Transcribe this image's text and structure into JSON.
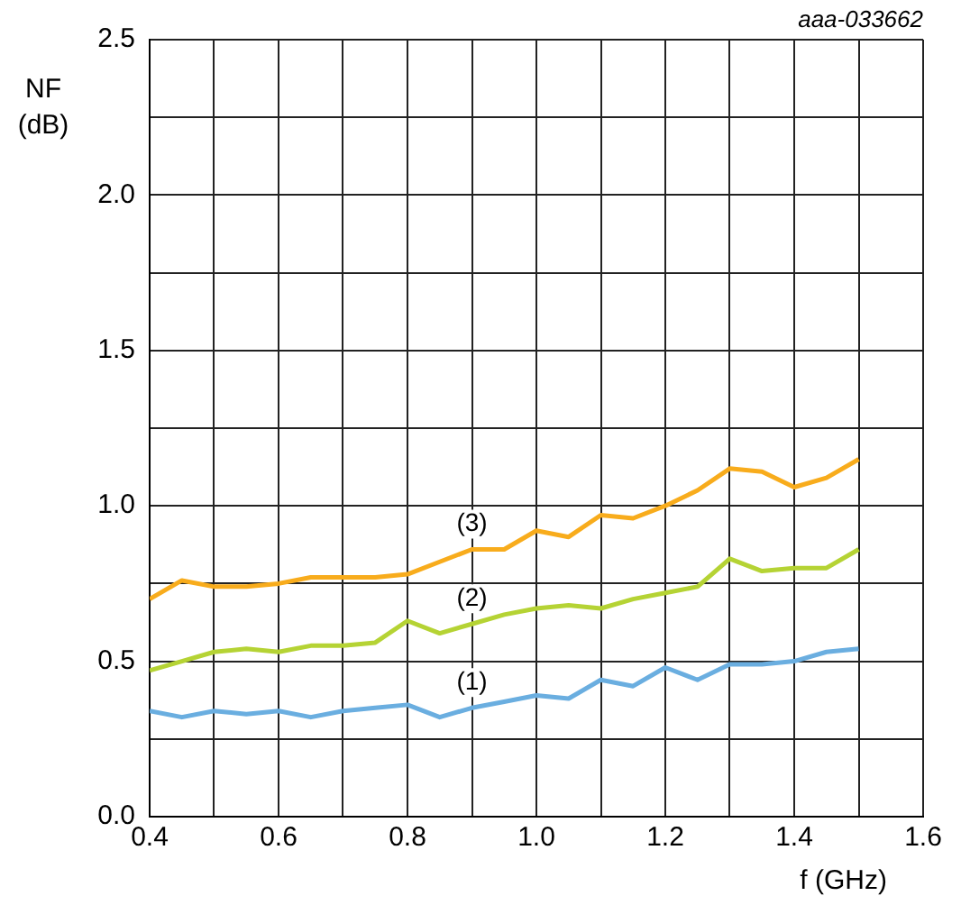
{
  "chart_data": {
    "type": "line",
    "xlabel": "f (GHz)",
    "ylabel": "NF (dB)",
    "x": [
      0.4,
      0.45,
      0.5,
      0.55,
      0.6,
      0.65,
      0.7,
      0.75,
      0.8,
      0.85,
      0.9,
      0.95,
      1.0,
      1.05,
      1.1,
      1.15,
      1.2,
      1.25,
      1.3,
      1.35,
      1.4,
      1.45,
      1.5
    ],
    "series": [
      {
        "name": "(1)",
        "color": "#6aaee0",
        "values": [
          0.34,
          0.32,
          0.34,
          0.33,
          0.34,
          0.32,
          0.34,
          0.35,
          0.36,
          0.32,
          0.35,
          0.37,
          0.39,
          0.38,
          0.44,
          0.42,
          0.48,
          0.44,
          0.49,
          0.49,
          0.5,
          0.53,
          0.54
        ]
      },
      {
        "name": "(2)",
        "color": "#b5d334",
        "values": [
          0.47,
          0.5,
          0.53,
          0.54,
          0.53,
          0.55,
          0.55,
          0.56,
          0.63,
          0.59,
          0.62,
          0.65,
          0.67,
          0.68,
          0.67,
          0.7,
          0.72,
          0.74,
          0.83,
          0.79,
          0.8,
          0.8,
          0.86
        ]
      },
      {
        "name": "(3)",
        "color": "#f8ac1c",
        "values": [
          0.7,
          0.76,
          0.74,
          0.74,
          0.75,
          0.77,
          0.77,
          0.77,
          0.78,
          0.82,
          0.86,
          0.86,
          0.92,
          0.9,
          0.97,
          0.96,
          1.0,
          1.05,
          1.12,
          1.11,
          1.06,
          1.09,
          1.15
        ]
      }
    ],
    "xlim": [
      0.4,
      1.6
    ],
    "xticks": [
      0.4,
      {
        "value": 0.5,
        "label": null
      },
      0.6,
      {
        "value": 0.7,
        "label": null
      },
      0.8,
      {
        "value": 0.9,
        "label": null
      },
      {
        "value": 1,
        "label": "1.0"
      },
      {
        "value": 1.1,
        "label": null
      },
      1.2,
      {
        "value": 1.3,
        "label": null
      },
      1.4,
      {
        "value": 1.5,
        "label": null
      },
      1.6
    ],
    "ylim": [
      0,
      2.5
    ],
    "yticks": [
      {
        "value": 0,
        "label": "0.0"
      },
      {
        "value": 0.25,
        "label": null
      },
      0.5,
      {
        "value": 0.75,
        "label": null
      },
      {
        "value": 1,
        "label": "1.0"
      },
      {
        "value": 1.25,
        "label": null
      },
      1.5,
      {
        "value": 1.75,
        "label": null
      },
      {
        "value": 2,
        "label": "2.0"
      },
      {
        "value": 2.25,
        "label": null
      },
      2.5
    ],
    "grid": true,
    "legend": false,
    "marker": "none",
    "line_style": "solid",
    "annotations": [
      "aaa-033662"
    ]
  }
}
